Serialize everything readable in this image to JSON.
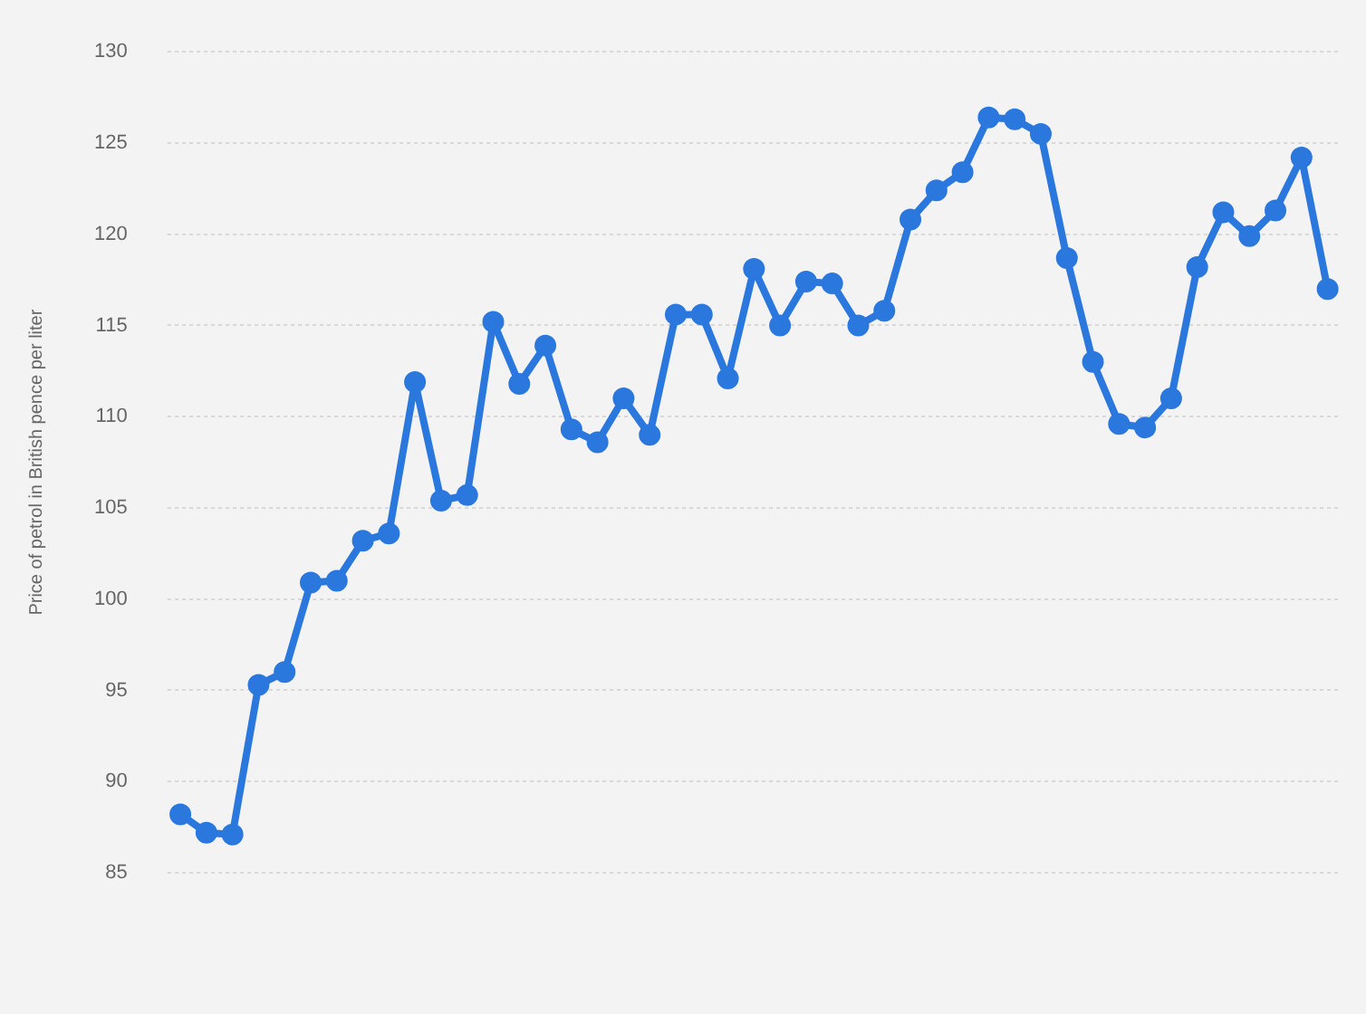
{
  "chart_data": {
    "type": "line",
    "ylabel": "Price of petrol in British pence per liter",
    "categories": [
      null,
      null,
      null,
      null,
      null,
      null,
      null,
      null,
      null,
      null,
      null,
      null,
      null,
      null,
      null,
      null,
      null,
      null,
      null,
      null,
      null,
      null,
      null,
      null,
      null,
      null,
      null,
      null,
      null,
      null,
      null,
      null,
      null,
      null,
      null,
      null,
      null,
      null,
      null,
      null,
      null,
      null,
      null,
      null,
      null
    ],
    "series": [
      {
        "color": "#2a77de",
        "values": [
          88.2,
          87.2,
          87.1,
          95.3,
          96.0,
          100.9,
          101.0,
          103.2,
          103.6,
          111.9,
          105.4,
          105.7,
          115.2,
          111.8,
          113.9,
          109.3,
          108.6,
          111.0,
          109.0,
          115.6,
          115.6,
          112.1,
          118.1,
          115.0,
          117.4,
          117.3,
          115.0,
          115.8,
          120.8,
          122.4,
          123.4,
          126.4,
          126.3,
          125.5,
          118.7,
          113.0,
          109.6,
          109.4,
          111.0,
          118.2,
          121.2,
          119.9,
          121.3,
          124.2,
          117.0
        ]
      }
    ],
    "ylim": [
      85,
      130
    ],
    "yticks": [
      85,
      90,
      95,
      100,
      105,
      110,
      115,
      120,
      125,
      130
    ],
    "grid": "y",
    "legend": false,
    "marker": "circle",
    "line_style": "solid",
    "tick_labels": "y"
  }
}
